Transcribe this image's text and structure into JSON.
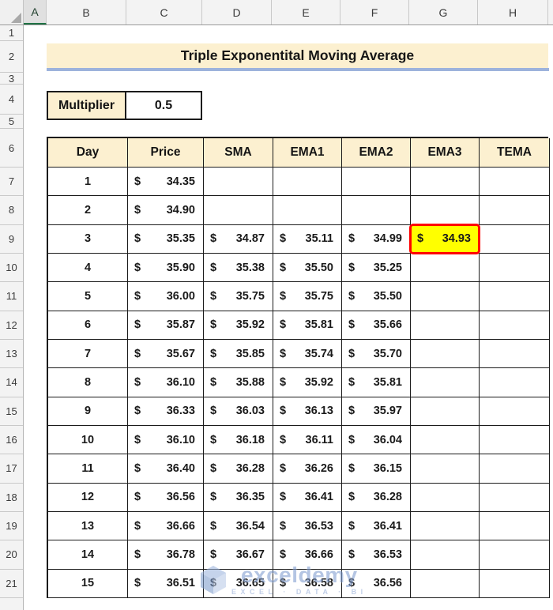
{
  "sheet": {
    "selected_column": "A",
    "column_headers": [
      "A",
      "B",
      "C",
      "D",
      "E",
      "F",
      "G",
      "H"
    ],
    "row_headers": [
      "1",
      "2",
      "3",
      "4",
      "5",
      "6",
      "7",
      "8",
      "9",
      "10",
      "11",
      "12",
      "13",
      "14",
      "15",
      "16",
      "17",
      "18",
      "19",
      "20",
      "21"
    ]
  },
  "title_banner": {
    "text": "Triple Exponentital Moving Average"
  },
  "multiplier": {
    "label": "Multiplier",
    "value": "0.5"
  },
  "table": {
    "headers": [
      "Day",
      "Price",
      "SMA",
      "EMA1",
      "EMA2",
      "EMA3",
      "TEMA"
    ],
    "currency_symbol": "$",
    "rows": [
      [
        "1",
        "34.35",
        "",
        "",
        "",
        "",
        ""
      ],
      [
        "2",
        "34.90",
        "",
        "",
        "",
        "",
        ""
      ],
      [
        "3",
        "35.35",
        "34.87",
        "35.11",
        "34.99",
        "34.93",
        ""
      ],
      [
        "4",
        "35.90",
        "35.38",
        "35.50",
        "35.25",
        "",
        ""
      ],
      [
        "5",
        "36.00",
        "35.75",
        "35.75",
        "35.50",
        "",
        ""
      ],
      [
        "6",
        "35.87",
        "35.92",
        "35.81",
        "35.66",
        "",
        ""
      ],
      [
        "7",
        "35.67",
        "35.85",
        "35.74",
        "35.70",
        "",
        ""
      ],
      [
        "8",
        "36.10",
        "35.88",
        "35.92",
        "35.81",
        "",
        ""
      ],
      [
        "9",
        "36.33",
        "36.03",
        "36.13",
        "35.97",
        "",
        ""
      ],
      [
        "10",
        "36.10",
        "36.18",
        "36.11",
        "36.04",
        "",
        ""
      ],
      [
        "11",
        "36.40",
        "36.28",
        "36.26",
        "36.15",
        "",
        ""
      ],
      [
        "12",
        "36.56",
        "36.35",
        "36.41",
        "36.28",
        "",
        ""
      ],
      [
        "13",
        "36.66",
        "36.54",
        "36.53",
        "36.41",
        "",
        ""
      ],
      [
        "14",
        "36.78",
        "36.67",
        "36.66",
        "36.53",
        "",
        ""
      ],
      [
        "15",
        "36.51",
        "36.65",
        "36.58",
        "36.56",
        "",
        ""
      ]
    ],
    "highlight": {
      "row_index": 2,
      "col_index": 5,
      "bg": "#FFFF00",
      "border_color": "#FF0000"
    }
  },
  "watermark": {
    "brand": "exceldemy",
    "tagline": "EXCEL · DATA · BI"
  },
  "colors": {
    "header_fill": "#FCF0D0",
    "banner_underline": "#9DB3DC",
    "table_border": "#1B1B1B",
    "selected_column_underline": "#217346",
    "highlight_bg": "#FFFF00",
    "highlight_border": "#FF0000"
  }
}
